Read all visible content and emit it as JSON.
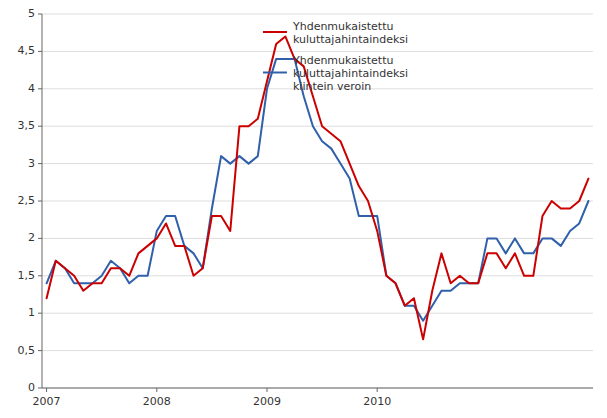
{
  "chart_data": {
    "type": "line",
    "categories": [
      "2007",
      null,
      null,
      null,
      null,
      null,
      null,
      null,
      null,
      null,
      null,
      null,
      "2008",
      null,
      null,
      null,
      null,
      null,
      null,
      null,
      null,
      null,
      null,
      null,
      "2009",
      null,
      null,
      null,
      null,
      null,
      null,
      null,
      null,
      null,
      null,
      null,
      "2010",
      null,
      null,
      null,
      null,
      null,
      null,
      null,
      null,
      null,
      null,
      null,
      null,
      null,
      null,
      null,
      null,
      null,
      null,
      null,
      null,
      null,
      null,
      null
    ],
    "series": [
      {
        "name": "Yhdenmukaistettu\nkuluttajahintaindeksi",
        "color": "#cc0000",
        "values": [
          1.2,
          1.7,
          1.6,
          1.5,
          1.3,
          1.4,
          1.4,
          1.6,
          1.6,
          1.5,
          1.8,
          1.9,
          2.0,
          2.2,
          1.9,
          1.9,
          1.5,
          1.6,
          2.3,
          2.3,
          2.1,
          3.5,
          3.5,
          3.6,
          4.1,
          4.6,
          4.7,
          4.4,
          4.3,
          3.9,
          3.5,
          3.4,
          3.3,
          3.0,
          2.7,
          2.5,
          2.1,
          1.5,
          1.4,
          1.1,
          1.2,
          0.65,
          1.3,
          1.8,
          1.4,
          1.5,
          1.4,
          1.4,
          1.8,
          1.8,
          1.6,
          1.8,
          1.5,
          1.5,
          2.3,
          2.5,
          2.4,
          2.4,
          2.5,
          2.8
        ]
      },
      {
        "name": "Yhdenmukaistettu\nkuluttajahintaindeksi\nkiintein veroin",
        "color": "#3060aa",
        "values": [
          1.4,
          1.7,
          1.6,
          1.4,
          1.4,
          1.4,
          1.5,
          1.7,
          1.6,
          1.4,
          1.5,
          1.5,
          2.1,
          2.3,
          2.3,
          1.9,
          1.8,
          1.6,
          2.4,
          3.1,
          3.0,
          3.1,
          3.0,
          3.1,
          4.0,
          4.4,
          4.4,
          4.4,
          3.9,
          3.5,
          3.3,
          3.2,
          3.0,
          2.8,
          2.3,
          2.3,
          2.3,
          1.5,
          1.4,
          1.1,
          1.1,
          0.9,
          1.1,
          1.3,
          1.3,
          1.4,
          1.4,
          1.4,
          2.0,
          2.0,
          1.8,
          2.0,
          1.8,
          1.8,
          2.0,
          2.0,
          1.9,
          2.1,
          2.2,
          2.5
        ]
      }
    ],
    "ylim": [
      0,
      5
    ],
    "yticks": [
      0,
      {
        "value": 0.5,
        "label": "0,5"
      },
      1,
      {
        "value": 1.5,
        "label": "1,5"
      },
      2,
      {
        "value": 2.5,
        "label": "2,5"
      },
      3,
      {
        "value": 3.5,
        "label": "3,5"
      },
      4,
      {
        "value": 4.5,
        "label": "4,5"
      },
      5
    ],
    "grid": true,
    "legend": "upper right"
  }
}
